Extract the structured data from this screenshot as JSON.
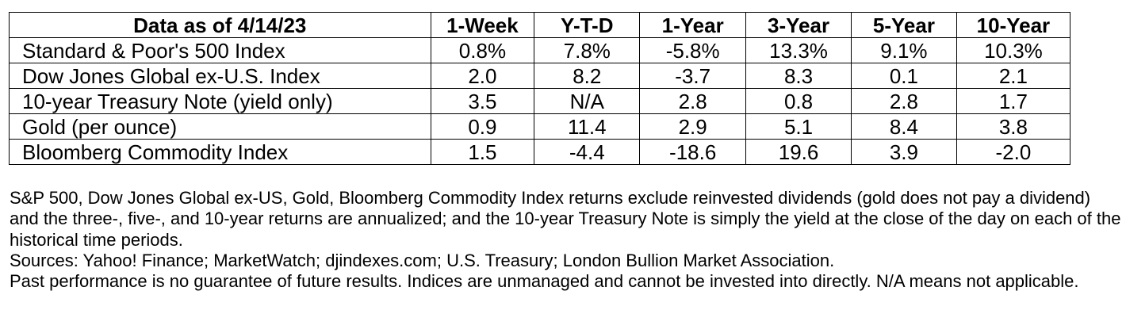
{
  "table": {
    "headers": [
      "Data as of 4/14/23",
      "1-Week",
      "Y-T-D",
      "1-Year",
      "3-Year",
      "5-Year",
      "10-Year"
    ],
    "rows": [
      {
        "label": "Standard & Poor's 500 Index",
        "values": [
          "0.8%",
          "7.8%",
          "-5.8%",
          "13.3%",
          "9.1%",
          "10.3%"
        ]
      },
      {
        "label": "Dow Jones Global ex-U.S. Index",
        "values": [
          "2.0",
          "8.2",
          "-3.7",
          "8.3",
          "0.1",
          "2.1"
        ]
      },
      {
        "label": "10-year Treasury Note (yield only)",
        "values": [
          "3.5",
          "N/A",
          "2.8",
          "0.8",
          "2.8",
          "1.7"
        ]
      },
      {
        "label": "Gold (per ounce)",
        "values": [
          "0.9",
          "11.4",
          "2.9",
          "5.1",
          "8.4",
          "3.8"
        ]
      },
      {
        "label": "Bloomberg Commodity Index",
        "values": [
          "1.5",
          "-4.4",
          "-18.6",
          "19.6",
          "3.9",
          "-2.0"
        ]
      }
    ]
  },
  "notes": {
    "methodology": "S&P 500, Dow Jones Global ex-US, Gold, Bloomberg Commodity Index returns exclude reinvested dividends (gold does not pay a dividend) and the three-, five-, and 10-year returns are annualized; and the 10-year Treasury Note is simply the yield at the close of the day on each of the historical time periods.",
    "sources": "Sources: Yahoo! Finance; MarketWatch; djindexes.com; U.S. Treasury; London Bullion Market Association.",
    "disclaimer": "Past performance is no guarantee of future results. Indices are unmanaged and cannot be invested into directly. N/A means not applicable."
  }
}
